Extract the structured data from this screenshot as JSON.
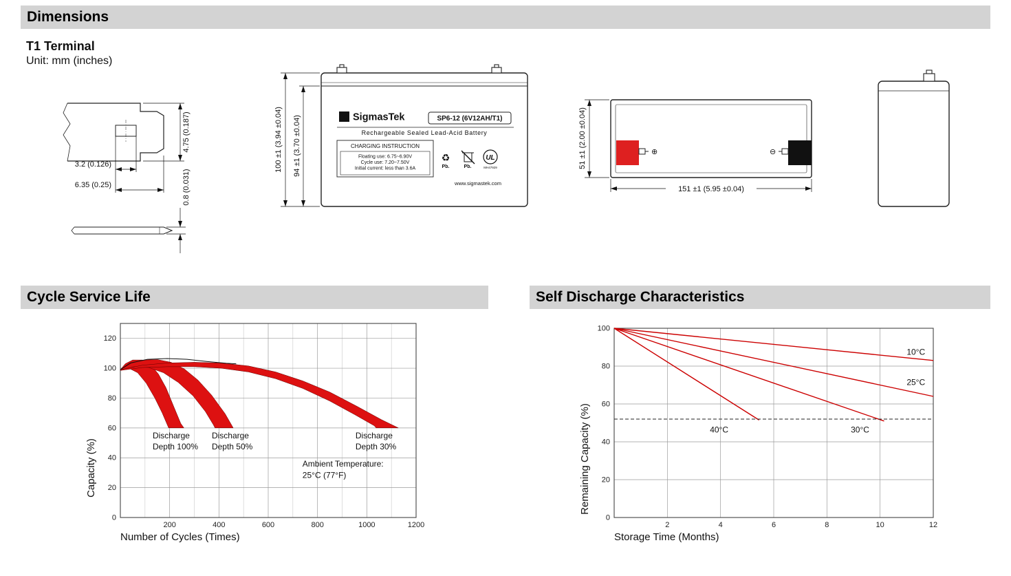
{
  "sections": {
    "dimensions": {
      "title": "Dimensions"
    },
    "cycle_service_life": {
      "title": "Cycle Service Life"
    },
    "self_discharge": {
      "title": "Self Discharge Characteristics"
    }
  },
  "terminal_info": {
    "type_title": "T1 Terminal",
    "unit_note": "Unit: mm (inches)"
  },
  "terminal_drawing": {
    "dim_tab_height": "4.75 (0.187)",
    "dim_hole": "3.2 (0.126)",
    "dim_tab_width": "6.35 (0.25)",
    "dim_thickness": "0.8 (0.031)"
  },
  "front_view": {
    "dim_total_height": "100 ±1 (3.94 ±0.04)",
    "dim_case_height": "94 ±1 (3.70 ±0.04)",
    "logo_glyph": "Σ",
    "brand": "SigmasTek",
    "model": "SP6-12 (6V12AH/T1)",
    "battery_type": "Rechargeable Sealed Lead-Acid Battery",
    "charging_title": "CHARGING INSTRUCTION",
    "charging_lines": [
      "Floating use: 6.75~6.90V",
      "Cycle use: 7.20~7.50V",
      "Initial current: less than 3.6A"
    ],
    "recycle_icon": "♻",
    "pb_label_1": "Pb.",
    "pb_label_2": "Pb.",
    "ul_label": "UL",
    "ul_code": "MH47929",
    "website": "www.sigmastek.com"
  },
  "top_view": {
    "dim_width": "51 ±1 (2.00 ±0.04)",
    "dim_length": "151 ±1 (5.95 ±0.04)",
    "positive_symbol": "⊕",
    "negative_symbol": "⊖"
  },
  "chart_data": [
    {
      "type": "area",
      "title": "Cycle Service Life",
      "xlabel": "Number of Cycles (Times)",
      "ylabel": "Capacity (%)",
      "xlim": [
        0,
        1200
      ],
      "ylim": [
        0,
        130
      ],
      "xticks": [
        200,
        400,
        600,
        800,
        1000,
        1200
      ],
      "xminor": [
        100,
        300,
        500,
        700,
        900,
        1100
      ],
      "yticks": [
        0,
        20,
        40,
        60,
        80,
        100,
        120
      ],
      "grid": true,
      "band_color": "#dd1111",
      "line_step": 7.4,
      "bands": [
        {
          "name": "Discharge Depth 100%",
          "upper": [
            [
              0,
              99
            ],
            [
              20,
              103
            ],
            [
              50,
              105.5
            ],
            [
              90,
              105.5
            ],
            [
              125,
              102
            ],
            [
              155,
              96
            ],
            [
              185,
              87
            ],
            [
              215,
              75
            ],
            [
              245,
              63
            ],
            [
              258,
              60
            ]
          ],
          "lower": [
            [
              0,
              98.5
            ],
            [
              35,
              100
            ],
            [
              70,
              97
            ],
            [
              105,
              90
            ],
            [
              140,
              80
            ],
            [
              170,
              70
            ],
            [
              192,
              61.5
            ],
            [
              196,
              60
            ]
          ]
        },
        {
          "name": "Discharge Depth 50%",
          "upper": [
            [
              0,
              99
            ],
            [
              45,
              103.5
            ],
            [
              95,
              105.5
            ],
            [
              150,
              105.8
            ],
            [
              205,
              104
            ],
            [
              260,
              99.5
            ],
            [
              315,
              92
            ],
            [
              370,
              82
            ],
            [
              425,
              69.5
            ],
            [
              458,
              60
            ]
          ],
          "lower": [
            [
              0,
              98.5
            ],
            [
              55,
              101
            ],
            [
              115,
              100.5
            ],
            [
              175,
              97
            ],
            [
              235,
              90.5
            ],
            [
              295,
              81.5
            ],
            [
              345,
              71
            ],
            [
              378,
              62
            ],
            [
              384,
              60
            ]
          ]
        },
        {
          "name": "Discharge Depth 30%",
          "upper": [
            [
              0,
              99
            ],
            [
              90,
              102
            ],
            [
              190,
              103.5
            ],
            [
              300,
              104
            ],
            [
              410,
              103.5
            ],
            [
              520,
              101.5
            ],
            [
              630,
              97.5
            ],
            [
              740,
              91.5
            ],
            [
              850,
              84
            ],
            [
              960,
              74.5
            ],
            [
              1060,
              65.5
            ],
            [
              1128,
              60
            ]
          ],
          "lower": [
            [
              0,
              98.5
            ],
            [
              90,
              100.5
            ],
            [
              190,
              101
            ],
            [
              300,
              101
            ],
            [
              410,
              100
            ],
            [
              520,
              97.5
            ],
            [
              630,
              93
            ],
            [
              740,
              86.5
            ],
            [
              850,
              78
            ],
            [
              950,
              69
            ],
            [
              1030,
              61.5
            ],
            [
              1038,
              60
            ]
          ]
        }
      ],
      "lines": [
        {
          "name": "envelope",
          "color": "#111111",
          "width": 1,
          "points": [
            [
              0,
              99
            ],
            [
              40,
              103.5
            ],
            [
              110,
              106
            ],
            [
              190,
              106.5
            ],
            [
              270,
              106
            ],
            [
              350,
              104.5
            ],
            [
              430,
              103.3
            ],
            [
              470,
              103
            ]
          ]
        }
      ],
      "labels": [
        {
          "lines": [
            "Discharge",
            "Depth 100%"
          ],
          "x": 131,
          "y": 53,
          "align": "start"
        },
        {
          "lines": [
            "Discharge",
            "Depth 50%"
          ],
          "x": 371,
          "y": 53,
          "align": "start"
        },
        {
          "lines": [
            "Discharge",
            "Depth 30%"
          ],
          "x": 954,
          "y": 53,
          "align": "start"
        },
        {
          "lines": [
            "Ambient Temperature:",
            "25°C (77°F)"
          ],
          "x": 739,
          "y": 34,
          "align": "start"
        }
      ]
    },
    {
      "type": "line",
      "title": "Self Discharge Characteristics",
      "xlabel": "Storage Time (Months)",
      "ylabel": "Remaining Capacity (%)",
      "xlim": [
        0,
        12
      ],
      "ylim": [
        0,
        100
      ],
      "xticks": [
        2,
        4,
        6,
        8,
        10,
        12
      ],
      "yticks": [
        0,
        20,
        40,
        60,
        80,
        100
      ],
      "grid": true,
      "line_step": 9,
      "lines": [
        {
          "name": "10°C",
          "color": "#cc0000",
          "width": 1.4,
          "points": [
            [
              0,
              100
            ],
            [
              12,
              83
            ]
          ]
        },
        {
          "name": "25°C",
          "color": "#cc0000",
          "width": 1.4,
          "points": [
            [
              0,
              100
            ],
            [
              12,
              64
            ]
          ]
        },
        {
          "name": "30°C",
          "color": "#cc0000",
          "width": 1.4,
          "points": [
            [
              0,
              100
            ],
            [
              10.15,
              51
            ]
          ]
        },
        {
          "name": "40°C",
          "color": "#cc0000",
          "width": 1.4,
          "points": [
            [
              0,
              100
            ],
            [
              5.45,
              51.5
            ]
          ]
        }
      ],
      "dashed_lines": [
        {
          "y": 52
        }
      ],
      "labels": [
        {
          "lines": [
            "10°C"
          ],
          "x": 11.0,
          "y": 86,
          "align": "start"
        },
        {
          "lines": [
            "25°C"
          ],
          "x": 11.0,
          "y": 70,
          "align": "start"
        },
        {
          "lines": [
            "30°C"
          ],
          "x": 8.9,
          "y": 45,
          "align": "start"
        },
        {
          "lines": [
            "40°C"
          ],
          "x": 3.6,
          "y": 45,
          "align": "start"
        }
      ]
    }
  ]
}
